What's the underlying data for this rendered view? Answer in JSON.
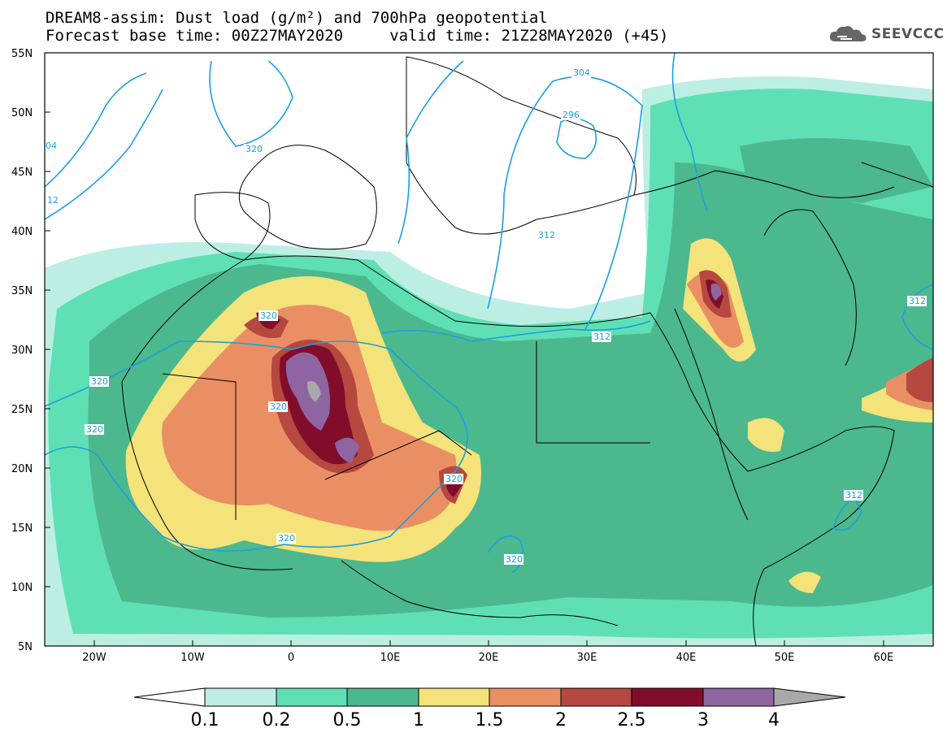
{
  "header": {
    "title_line1": "DREAM8-assim: Dust load (g/m²) and 700hPa geopotential",
    "title_line2": "Forecast base time: 00Z27MAY2020     valid time: 21Z28MAY2020 (+45)",
    "logo_text": "SEEVCCC"
  },
  "map": {
    "lat_labels": [
      "55N",
      "50N",
      "45N",
      "40N",
      "35N",
      "30N",
      "25N",
      "20N",
      "15N",
      "10N",
      "5N"
    ],
    "lon_labels": [
      "20W",
      "10W",
      "0",
      "10E",
      "20E",
      "30E",
      "40E",
      "50E",
      "60E"
    ],
    "contour_labels": [
      "304",
      "296",
      "312",
      "320",
      "320",
      "320",
      "320",
      "320",
      "320",
      "320",
      "312",
      "312",
      "312",
      "04",
      "12"
    ]
  },
  "colorbar": {
    "labels": [
      "0.1",
      "0.2",
      "0.5",
      "1",
      "1.5",
      "2",
      "2.5",
      "3",
      "4"
    ],
    "colors": [
      "#bdeee4",
      "#5fe0b4",
      "#4cb88d",
      "#f4e27a",
      "#ea8f63",
      "#b5483f",
      "#820d2b",
      "#8e65a0"
    ],
    "below_color": "#ffffff",
    "above_color": "#a9a9a9"
  },
  "contour_color": "#1aa0e0"
}
